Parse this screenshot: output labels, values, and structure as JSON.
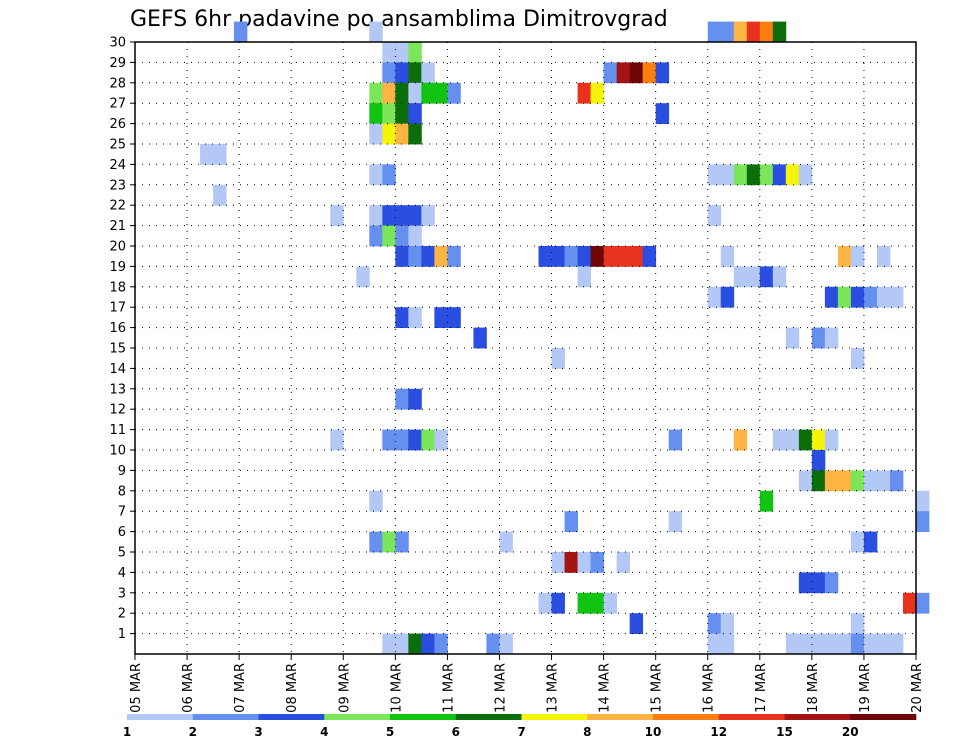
{
  "chart_data": {
    "type": "heatmap",
    "title": "GEFS 6hr padavine po ansamblima Dimitrovgrad",
    "xlabel": "",
    "ylabel": "",
    "x_tick_labels": [
      "05 MAR",
      "06 MAR",
      "07 MAR",
      "08 MAR",
      "09 MAR",
      "10 MAR",
      "11 MAR",
      "12 MAR",
      "13 MAR",
      "14 MAR",
      "15 MAR",
      "16 MAR",
      "17 MAR",
      "18 MAR",
      "19 MAR",
      "20 MAR"
    ],
    "x_range_days": [
      0,
      15
    ],
    "y_tick_labels": [
      "1",
      "2",
      "3",
      "4",
      "5",
      "6",
      "7",
      "8",
      "9",
      "10",
      "11",
      "12",
      "13",
      "14",
      "15",
      "16",
      "17",
      "18",
      "19",
      "20",
      "21",
      "22",
      "23",
      "24",
      "25",
      "26",
      "27",
      "28",
      "29",
      "30"
    ],
    "y_range": [
      0,
      30
    ],
    "grid": true,
    "legend": {
      "position": "bottom",
      "thresholds": [
        "1",
        "2",
        "3",
        "4",
        "5",
        "6",
        "7",
        "8",
        "10",
        "12",
        "15",
        "20"
      ],
      "colors": [
        "#b4c8f6",
        "#6690f0",
        "#2a4ee0",
        "#7be65a",
        "#11c411",
        "#0b6e0b",
        "#f5f50a",
        "#fdb443",
        "#fc7e0e",
        "#e8321d",
        "#a51414",
        "#6e0606"
      ]
    },
    "cells": [
      {
        "member": 30,
        "day": 6.9,
        "level": 2
      },
      {
        "member": 30,
        "day": 9.5,
        "level": 1
      },
      {
        "member": 30,
        "day": 16.0,
        "level": 2
      },
      {
        "member": 30,
        "day": 16.25,
        "level": 2
      },
      {
        "member": 30,
        "day": 16.5,
        "level": 8
      },
      {
        "member": 30,
        "day": 16.75,
        "level": 10
      },
      {
        "member": 30,
        "day": 17.0,
        "level": 9
      },
      {
        "member": 30,
        "day": 17.25,
        "level": 6
      },
      {
        "member": 29,
        "day": 9.75,
        "level": 1
      },
      {
        "member": 29,
        "day": 10.0,
        "level": 1
      },
      {
        "member": 29,
        "day": 10.25,
        "level": 4
      },
      {
        "member": 28,
        "day": 9.75,
        "level": 2
      },
      {
        "member": 28,
        "day": 10.0,
        "level": 3
      },
      {
        "member": 28,
        "day": 10.25,
        "level": 6
      },
      {
        "member": 28,
        "day": 10.5,
        "level": 1
      },
      {
        "member": 28,
        "day": 14.0,
        "level": 2
      },
      {
        "member": 28,
        "day": 14.25,
        "level": 11
      },
      {
        "member": 28,
        "day": 14.5,
        "level": 12
      },
      {
        "member": 28,
        "day": 14.75,
        "level": 9
      },
      {
        "member": 28,
        "day": 15.0,
        "level": 3
      },
      {
        "member": 27,
        "day": 9.5,
        "level": 4
      },
      {
        "member": 27,
        "day": 9.75,
        "level": 8
      },
      {
        "member": 27,
        "day": 10.0,
        "level": 6
      },
      {
        "member": 27,
        "day": 10.25,
        "level": 1
      },
      {
        "member": 27,
        "day": 10.5,
        "level": 5
      },
      {
        "member": 27,
        "day": 10.75,
        "level": 5
      },
      {
        "member": 27,
        "day": 11.0,
        "level": 2
      },
      {
        "member": 27,
        "day": 13.5,
        "level": 10
      },
      {
        "member": 27,
        "day": 13.75,
        "level": 7
      },
      {
        "member": 26,
        "day": 9.5,
        "level": 5
      },
      {
        "member": 26,
        "day": 9.75,
        "level": 4
      },
      {
        "member": 26,
        "day": 10.0,
        "level": 6
      },
      {
        "member": 26,
        "day": 10.25,
        "level": 3
      },
      {
        "member": 26,
        "day": 15.0,
        "level": 3
      },
      {
        "member": 25,
        "day": 9.5,
        "level": 1
      },
      {
        "member": 25,
        "day": 9.75,
        "level": 7
      },
      {
        "member": 25,
        "day": 10.0,
        "level": 8
      },
      {
        "member": 25,
        "day": 10.25,
        "level": 6
      },
      {
        "member": 24,
        "day": 6.25,
        "level": 1
      },
      {
        "member": 24,
        "day": 6.5,
        "level": 1
      },
      {
        "member": 23,
        "day": 9.5,
        "level": 1
      },
      {
        "member": 23,
        "day": 9.75,
        "level": 2
      },
      {
        "member": 23,
        "day": 16.0,
        "level": 1
      },
      {
        "member": 23,
        "day": 16.25,
        "level": 1
      },
      {
        "member": 23,
        "day": 16.5,
        "level": 4
      },
      {
        "member": 23,
        "day": 16.75,
        "level": 6
      },
      {
        "member": 23,
        "day": 17.0,
        "level": 4
      },
      {
        "member": 23,
        "day": 17.25,
        "level": 3
      },
      {
        "member": 23,
        "day": 17.5,
        "level": 7
      },
      {
        "member": 23,
        "day": 17.75,
        "level": 1
      },
      {
        "member": 22,
        "day": 6.5,
        "level": 1
      },
      {
        "member": 21,
        "day": 8.75,
        "level": 1
      },
      {
        "member": 21,
        "day": 9.5,
        "level": 1
      },
      {
        "member": 21,
        "day": 9.75,
        "level": 3
      },
      {
        "member": 21,
        "day": 10.0,
        "level": 3
      },
      {
        "member": 21,
        "day": 10.25,
        "level": 3
      },
      {
        "member": 21,
        "day": 10.5,
        "level": 1
      },
      {
        "member": 21,
        "day": 16.0,
        "level": 1
      },
      {
        "member": 20,
        "day": 9.5,
        "level": 2
      },
      {
        "member": 20,
        "day": 9.75,
        "level": 4
      },
      {
        "member": 20,
        "day": 10.0,
        "level": 2
      },
      {
        "member": 20,
        "day": 10.25,
        "level": 1
      },
      {
        "member": 19,
        "day": 10.0,
        "level": 3
      },
      {
        "member": 19,
        "day": 10.25,
        "level": 2
      },
      {
        "member": 19,
        "day": 10.5,
        "level": 3
      },
      {
        "member": 19,
        "day": 10.75,
        "level": 8
      },
      {
        "member": 19,
        "day": 11.0,
        "level": 2
      },
      {
        "member": 19,
        "day": 12.75,
        "level": 3
      },
      {
        "member": 19,
        "day": 13.0,
        "level": 3
      },
      {
        "member": 19,
        "day": 13.25,
        "level": 2
      },
      {
        "member": 19,
        "day": 13.5,
        "level": 3
      },
      {
        "member": 19,
        "day": 13.75,
        "level": 12
      },
      {
        "member": 19,
        "day": 14.0,
        "level": 10
      },
      {
        "member": 19,
        "day": 14.25,
        "level": 10
      },
      {
        "member": 19,
        "day": 14.5,
        "level": 10
      },
      {
        "member": 19,
        "day": 14.75,
        "level": 3
      },
      {
        "member": 19,
        "day": 16.25,
        "level": 1
      },
      {
        "member": 19,
        "day": 18.5,
        "level": 8
      },
      {
        "member": 19,
        "day": 18.75,
        "level": 1
      },
      {
        "member": 19,
        "day": 19.25,
        "level": 1
      },
      {
        "member": 18,
        "day": 9.25,
        "level": 1
      },
      {
        "member": 18,
        "day": 13.5,
        "level": 1
      },
      {
        "member": 18,
        "day": 16.5,
        "level": 1
      },
      {
        "member": 18,
        "day": 16.75,
        "level": 1
      },
      {
        "member": 18,
        "day": 17.0,
        "level": 3
      },
      {
        "member": 18,
        "day": 17.25,
        "level": 1
      },
      {
        "member": 17,
        "day": 16.0,
        "level": 1
      },
      {
        "member": 17,
        "day": 16.25,
        "level": 3
      },
      {
        "member": 17,
        "day": 18.25,
        "level": 3
      },
      {
        "member": 17,
        "day": 18.5,
        "level": 4
      },
      {
        "member": 17,
        "day": 18.75,
        "level": 3
      },
      {
        "member": 17,
        "day": 19.0,
        "level": 2
      },
      {
        "member": 17,
        "day": 19.25,
        "level": 1
      },
      {
        "member": 17,
        "day": 19.5,
        "level": 1
      },
      {
        "member": 16,
        "day": 10.0,
        "level": 3
      },
      {
        "member": 16,
        "day": 10.25,
        "level": 1
      },
      {
        "member": 16,
        "day": 10.75,
        "level": 3
      },
      {
        "member": 16,
        "day": 11.0,
        "level": 3
      },
      {
        "member": 15,
        "day": 11.5,
        "level": 3
      },
      {
        "member": 15,
        "day": 17.5,
        "level": 1
      },
      {
        "member": 15,
        "day": 18.0,
        "level": 2
      },
      {
        "member": 15,
        "day": 18.25,
        "level": 1
      },
      {
        "member": 14,
        "day": 13.0,
        "level": 1
      },
      {
        "member": 14,
        "day": 18.75,
        "level": 1
      },
      {
        "member": 12,
        "day": 10.0,
        "level": 2
      },
      {
        "member": 12,
        "day": 10.25,
        "level": 3
      },
      {
        "member": 10,
        "day": 8.75,
        "level": 1
      },
      {
        "member": 10,
        "day": 9.75,
        "level": 2
      },
      {
        "member": 10,
        "day": 10.0,
        "level": 2
      },
      {
        "member": 10,
        "day": 10.25,
        "level": 3
      },
      {
        "member": 10,
        "day": 10.5,
        "level": 4
      },
      {
        "member": 10,
        "day": 10.75,
        "level": 1
      },
      {
        "member": 10,
        "day": 15.25,
        "level": 2
      },
      {
        "member": 10,
        "day": 16.5,
        "level": 8
      },
      {
        "member": 10,
        "day": 17.25,
        "level": 1
      },
      {
        "member": 10,
        "day": 17.5,
        "level": 1
      },
      {
        "member": 10,
        "day": 17.75,
        "level": 6
      },
      {
        "member": 10,
        "day": 18.0,
        "level": 7
      },
      {
        "member": 10,
        "day": 18.25,
        "level": 1
      },
      {
        "member": 9,
        "day": 18.0,
        "level": 3
      },
      {
        "member": 8,
        "day": 17.75,
        "level": 1
      },
      {
        "member": 8,
        "day": 18.0,
        "level": 6
      },
      {
        "member": 8,
        "day": 18.25,
        "level": 8
      },
      {
        "member": 8,
        "day": 18.5,
        "level": 8
      },
      {
        "member": 8,
        "day": 18.75,
        "level": 4
      },
      {
        "member": 8,
        "day": 19.0,
        "level": 1
      },
      {
        "member": 8,
        "day": 19.25,
        "level": 1
      },
      {
        "member": 8,
        "day": 19.5,
        "level": 2
      },
      {
        "member": 7,
        "day": 9.5,
        "level": 1
      },
      {
        "member": 7,
        "day": 17.0,
        "level": 5
      },
      {
        "member": 7,
        "day": 20.0,
        "level": 1
      },
      {
        "member": 6,
        "day": 13.25,
        "level": 2
      },
      {
        "member": 6,
        "day": 15.25,
        "level": 1
      },
      {
        "member": 6,
        "day": 20.0,
        "level": 2
      },
      {
        "member": 5,
        "day": 9.5,
        "level": 2
      },
      {
        "member": 5,
        "day": 9.75,
        "level": 4
      },
      {
        "member": 5,
        "day": 10.0,
        "level": 2
      },
      {
        "member": 5,
        "day": 12.0,
        "level": 1
      },
      {
        "member": 5,
        "day": 18.75,
        "level": 1
      },
      {
        "member": 5,
        "day": 19.0,
        "level": 3
      },
      {
        "member": 4,
        "day": 13.0,
        "level": 1
      },
      {
        "member": 4,
        "day": 13.25,
        "level": 11
      },
      {
        "member": 4,
        "day": 13.5,
        "level": 1
      },
      {
        "member": 4,
        "day": 13.75,
        "level": 2
      },
      {
        "member": 4,
        "day": 14.25,
        "level": 1
      },
      {
        "member": 3,
        "day": 17.75,
        "level": 3
      },
      {
        "member": 3,
        "day": 18.0,
        "level": 3
      },
      {
        "member": 3,
        "day": 18.25,
        "level": 2
      },
      {
        "member": 2,
        "day": 12.75,
        "level": 1
      },
      {
        "member": 2,
        "day": 13.0,
        "level": 3
      },
      {
        "member": 2,
        "day": 13.5,
        "level": 5
      },
      {
        "member": 2,
        "day": 13.75,
        "level": 5
      },
      {
        "member": 2,
        "day": 14.0,
        "level": 1
      },
      {
        "member": 2,
        "day": 19.75,
        "level": 10
      },
      {
        "member": 2,
        "day": 20.0,
        "level": 2
      },
      {
        "member": 1,
        "day": 14.5,
        "level": 3
      },
      {
        "member": 1,
        "day": 16.0,
        "level": 2
      },
      {
        "member": 1,
        "day": 16.25,
        "level": 1
      },
      {
        "member": 1,
        "day": 18.75,
        "level": 1
      },
      {
        "member": 0,
        "day": 9.75,
        "level": 1
      },
      {
        "member": 0,
        "day": 10.0,
        "level": 1
      },
      {
        "member": 0,
        "day": 10.25,
        "level": 6
      },
      {
        "member": 0,
        "day": 10.5,
        "level": 3
      },
      {
        "member": 0,
        "day": 10.75,
        "level": 2
      },
      {
        "member": 0,
        "day": 11.75,
        "level": 2
      },
      {
        "member": 0,
        "day": 12.0,
        "level": 1
      },
      {
        "member": 0,
        "day": 16.0,
        "level": 1
      },
      {
        "member": 0,
        "day": 16.25,
        "level": 1
      },
      {
        "member": 0,
        "day": 17.5,
        "level": 1
      },
      {
        "member": 0,
        "day": 17.75,
        "level": 1
      },
      {
        "member": 0,
        "day": 18.0,
        "level": 1
      },
      {
        "member": 0,
        "day": 18.25,
        "level": 1
      },
      {
        "member": 0,
        "day": 18.5,
        "level": 1
      },
      {
        "member": 0,
        "day": 18.75,
        "level": 2
      },
      {
        "member": 0,
        "day": 19.0,
        "level": 1
      },
      {
        "member": 0,
        "day": 19.25,
        "level": 1
      },
      {
        "member": 0,
        "day": 19.5,
        "level": 1
      }
    ]
  }
}
